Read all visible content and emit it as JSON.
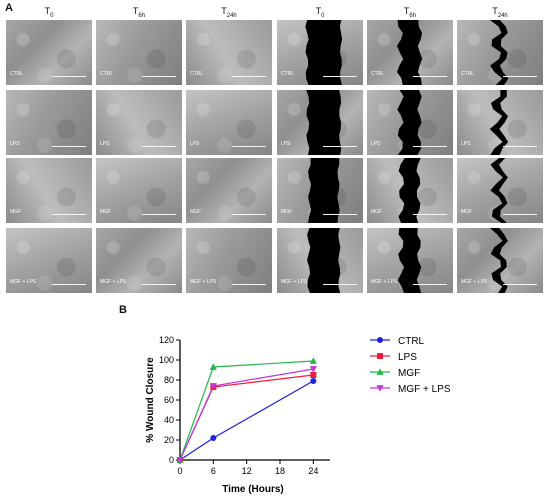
{
  "panel_a": {
    "letter": "A",
    "columns": [
      {
        "base": "T",
        "sub": "0"
      },
      {
        "base": "T",
        "sub": "6h"
      },
      {
        "base": "T",
        "sub": "24h"
      },
      {
        "base": "T",
        "sub": "0"
      },
      {
        "base": "T",
        "sub": "6h"
      },
      {
        "base": "T",
        "sub": "24h"
      }
    ],
    "row_labels": [
      "CTRL",
      "LPS",
      "MGF",
      "MGF + LPS"
    ]
  },
  "panel_b": {
    "letter": "B"
  },
  "chart_data": {
    "type": "line",
    "x": [
      0,
      6,
      24
    ],
    "xlabel": "Time (Hours)",
    "ylabel": "% Wound Closure",
    "xlim": [
      0,
      27
    ],
    "ylim": [
      0,
      120
    ],
    "xticks": [
      0,
      6,
      12,
      18,
      24
    ],
    "yticks": [
      0,
      20,
      40,
      60,
      80,
      100,
      120
    ],
    "legend_position": "right",
    "grid": false,
    "series": [
      {
        "name": "CTRL",
        "values": [
          0,
          22,
          79
        ],
        "color": "#1f1fe0",
        "marker": "circle"
      },
      {
        "name": "LPS",
        "values": [
          0,
          73,
          85
        ],
        "color": "#ee1c3a",
        "marker": "square"
      },
      {
        "name": "MGF",
        "values": [
          0,
          93,
          99
        ],
        "color": "#22b84a",
        "marker": "triangle-up"
      },
      {
        "name": "MGF + LPS",
        "values": [
          0,
          74,
          91
        ],
        "color": "#c236d8",
        "marker": "triangle-down"
      }
    ]
  }
}
